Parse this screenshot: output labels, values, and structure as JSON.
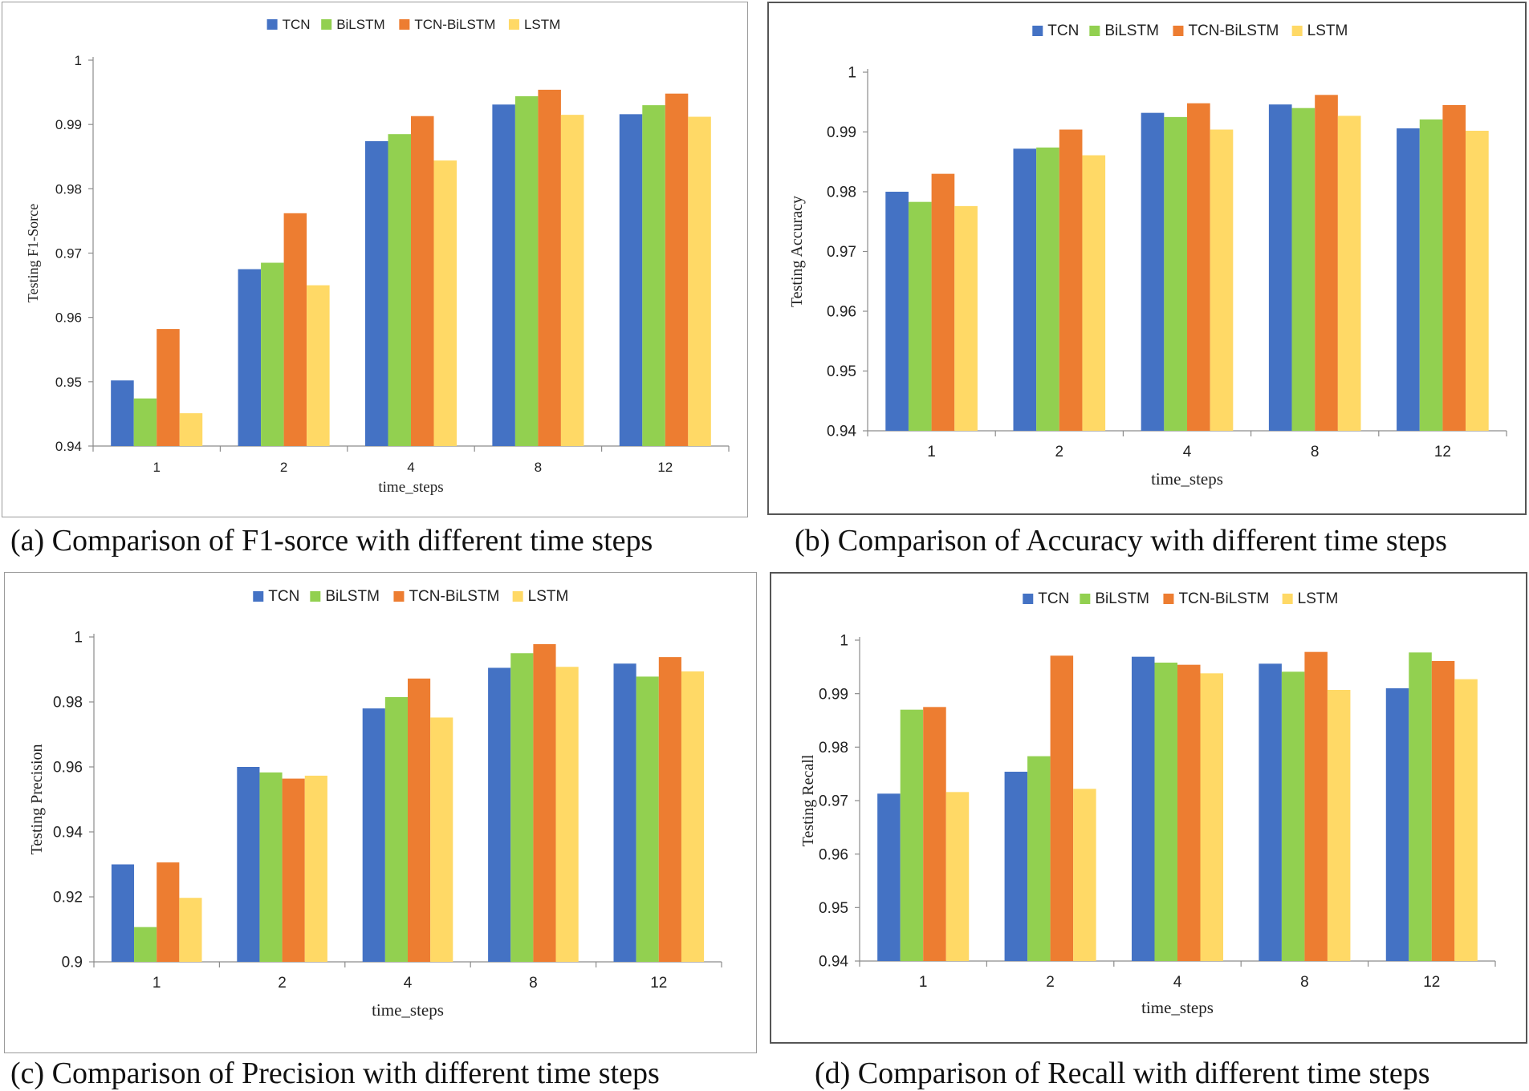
{
  "series_colors": {
    "TCN": "#4472C4",
    "BiLSTM": "#92D050",
    "TCN-BiLSTM": "#ED7D31",
    "LSTM": "#FFD966"
  },
  "panels": [
    {
      "caption": "(a) Comparison of F1-sorce with different time steps",
      "chart_data": {
        "type": "bar",
        "categories": [
          "1",
          "2",
          "4",
          "8",
          "12"
        ],
        "xlabel": "time_steps",
        "ylabel": "Testing F1-Sorce",
        "ylim": [
          0.94,
          1
        ],
        "yticks": [
          "0.94",
          "0.95",
          "0.96",
          "0.97",
          "0.98",
          "0.99",
          "1"
        ],
        "legend": "top-center",
        "grid": false,
        "series": [
          {
            "name": "TCN",
            "values": [
              0.9502,
              0.9675,
              0.9874,
              0.9931,
              0.9916
            ]
          },
          {
            "name": "BiLSTM",
            "values": [
              0.9474,
              0.9685,
              0.9885,
              0.9944,
              0.993
            ]
          },
          {
            "name": "TCN-BiLSTM",
            "values": [
              0.9582,
              0.9762,
              0.9913,
              0.9954,
              0.9948
            ]
          },
          {
            "name": "LSTM",
            "values": [
              0.9451,
              0.965,
              0.9844,
              0.9915,
              0.9912
            ]
          }
        ]
      }
    },
    {
      "caption": "(b) Comparison of Accuracy with different time steps",
      "chart_data": {
        "type": "bar",
        "categories": [
          "1",
          "2",
          "4",
          "8",
          "12"
        ],
        "xlabel": "time_steps",
        "ylabel": "Testing Accuracy",
        "ylim": [
          0.94,
          1
        ],
        "yticks": [
          "0.94",
          "0.95",
          "0.96",
          "0.97",
          "0.98",
          "0.99",
          "1"
        ],
        "legend": "top-center",
        "grid": false,
        "series": [
          {
            "name": "TCN",
            "values": [
              0.98,
              0.9872,
              0.9932,
              0.9946,
              0.9906
            ]
          },
          {
            "name": "BiLSTM",
            "values": [
              0.9783,
              0.9874,
              0.9925,
              0.994,
              0.9921
            ]
          },
          {
            "name": "TCN-BiLSTM",
            "values": [
              0.983,
              0.9904,
              0.9948,
              0.9962,
              0.9945
            ]
          },
          {
            "name": "LSTM",
            "values": [
              0.9776,
              0.9861,
              0.9904,
              0.9927,
              0.9902
            ]
          }
        ]
      }
    },
    {
      "caption": "(c) Comparison of Precision with different time steps",
      "chart_data": {
        "type": "bar",
        "categories": [
          "1",
          "2",
          "4",
          "8",
          "12"
        ],
        "xlabel": "time_steps",
        "ylabel": "Testing Precision",
        "ylim": [
          0.9,
          1
        ],
        "yticks": [
          "0.9",
          "0.92",
          "0.94",
          "0.96",
          "0.98",
          "1"
        ],
        "legend": "top-center",
        "grid": false,
        "series": [
          {
            "name": "TCN",
            "values": [
              0.93,
              0.96,
              0.978,
              0.9905,
              0.9918
            ]
          },
          {
            "name": "BiLSTM",
            "values": [
              0.9107,
              0.9583,
              0.9815,
              0.995,
              0.9878
            ]
          },
          {
            "name": "TCN-BiLSTM",
            "values": [
              0.9306,
              0.9564,
              0.9872,
              0.9978,
              0.9938
            ]
          },
          {
            "name": "LSTM",
            "values": [
              0.9197,
              0.9573,
              0.9752,
              0.9908,
              0.9894
            ]
          }
        ]
      }
    },
    {
      "caption": "(d) Comparison of Recall with different time steps",
      "chart_data": {
        "type": "bar",
        "categories": [
          "1",
          "2",
          "4",
          "8",
          "12"
        ],
        "xlabel": "time_steps",
        "ylabel": "Testing Recall",
        "ylim": [
          0.94,
          1
        ],
        "yticks": [
          "0.94",
          "0.95",
          "0.96",
          "0.97",
          "0.98",
          "0.99",
          "1"
        ],
        "legend": "top-center",
        "grid": false,
        "series": [
          {
            "name": "TCN",
            "values": [
              0.9713,
              0.9754,
              0.9969,
              0.9956,
              0.991
            ]
          },
          {
            "name": "BiLSTM",
            "values": [
              0.987,
              0.9783,
              0.9958,
              0.9941,
              0.9977
            ]
          },
          {
            "name": "TCN-BiLSTM",
            "values": [
              0.9875,
              0.9971,
              0.9954,
              0.9978,
              0.9961
            ]
          },
          {
            "name": "LSTM",
            "values": [
              0.9716,
              0.9722,
              0.9938,
              0.9907,
              0.9927
            ]
          }
        ]
      }
    }
  ]
}
